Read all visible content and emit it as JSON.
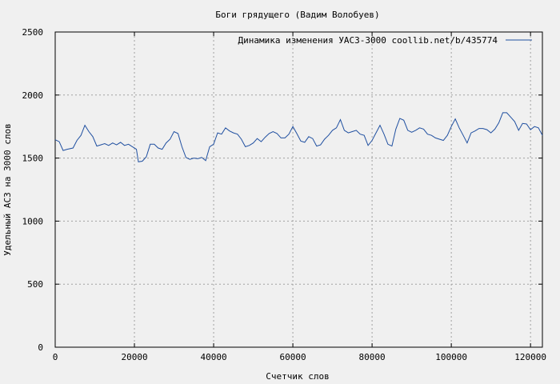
{
  "chart_data": {
    "type": "line",
    "title": "Боги грядущего (Вадим Волобуев)",
    "xlabel": "Счетчик слов",
    "ylabel": "Удельный АСЗ на 3000 слов",
    "xlim": [
      0,
      123000
    ],
    "ylim": [
      0,
      2500
    ],
    "x_ticks": [
      0,
      20000,
      40000,
      60000,
      80000,
      100000,
      120000
    ],
    "y_ticks": [
      0,
      500,
      1000,
      1500,
      2000,
      2500
    ],
    "grid": true,
    "legend_position": "top-right",
    "series": [
      {
        "name": "Динамика изменения УАСЗ-3000  coollib.net/b/435774",
        "color": "#1f4fa0",
        "points": [
          [
            0,
            1645
          ],
          [
            1000,
            1630
          ],
          [
            2000,
            1560
          ],
          [
            3000,
            1570
          ],
          [
            4500,
            1580
          ],
          [
            5500,
            1640
          ],
          [
            6500,
            1680
          ],
          [
            7500,
            1760
          ],
          [
            8500,
            1710
          ],
          [
            9500,
            1670
          ],
          [
            10500,
            1595
          ],
          [
            11500,
            1605
          ],
          [
            12500,
            1615
          ],
          [
            13500,
            1600
          ],
          [
            14500,
            1620
          ],
          [
            15500,
            1605
          ],
          [
            16500,
            1625
          ],
          [
            17500,
            1600
          ],
          [
            18500,
            1610
          ],
          [
            19500,
            1590
          ],
          [
            20500,
            1570
          ],
          [
            21000,
            1470
          ],
          [
            22000,
            1475
          ],
          [
            23000,
            1510
          ],
          [
            24000,
            1610
          ],
          [
            25000,
            1610
          ],
          [
            26000,
            1580
          ],
          [
            27000,
            1570
          ],
          [
            28000,
            1620
          ],
          [
            29000,
            1650
          ],
          [
            30000,
            1710
          ],
          [
            31000,
            1695
          ],
          [
            32000,
            1590
          ],
          [
            33000,
            1505
          ],
          [
            34000,
            1490
          ],
          [
            35000,
            1500
          ],
          [
            36000,
            1495
          ],
          [
            37000,
            1505
          ],
          [
            38000,
            1480
          ],
          [
            39000,
            1590
          ],
          [
            40000,
            1610
          ],
          [
            41000,
            1700
          ],
          [
            42000,
            1690
          ],
          [
            43000,
            1740
          ],
          [
            44000,
            1715
          ],
          [
            45000,
            1700
          ],
          [
            46000,
            1690
          ],
          [
            47000,
            1650
          ],
          [
            48000,
            1590
          ],
          [
            49000,
            1600
          ],
          [
            50000,
            1620
          ],
          [
            51000,
            1655
          ],
          [
            52000,
            1630
          ],
          [
            53000,
            1665
          ],
          [
            54000,
            1695
          ],
          [
            55000,
            1710
          ],
          [
            56000,
            1695
          ],
          [
            57000,
            1660
          ],
          [
            58000,
            1660
          ],
          [
            59000,
            1690
          ],
          [
            60000,
            1750
          ],
          [
            61000,
            1695
          ],
          [
            62000,
            1635
          ],
          [
            63000,
            1625
          ],
          [
            64000,
            1670
          ],
          [
            65000,
            1655
          ],
          [
            66000,
            1595
          ],
          [
            67000,
            1605
          ],
          [
            68000,
            1650
          ],
          [
            69000,
            1680
          ],
          [
            70000,
            1720
          ],
          [
            71000,
            1740
          ],
          [
            72000,
            1805
          ],
          [
            73000,
            1720
          ],
          [
            74000,
            1700
          ],
          [
            75000,
            1710
          ],
          [
            76000,
            1720
          ],
          [
            77000,
            1690
          ],
          [
            78000,
            1680
          ],
          [
            79000,
            1600
          ],
          [
            80000,
            1640
          ],
          [
            81000,
            1700
          ],
          [
            82000,
            1760
          ],
          [
            83000,
            1690
          ],
          [
            84000,
            1610
          ],
          [
            85000,
            1595
          ],
          [
            86000,
            1730
          ],
          [
            87000,
            1815
          ],
          [
            88000,
            1800
          ],
          [
            89000,
            1720
          ],
          [
            90000,
            1705
          ],
          [
            91000,
            1720
          ],
          [
            92000,
            1740
          ],
          [
            93000,
            1730
          ],
          [
            94000,
            1690
          ],
          [
            95000,
            1680
          ],
          [
            96000,
            1660
          ],
          [
            97000,
            1650
          ],
          [
            98000,
            1640
          ],
          [
            99000,
            1680
          ],
          [
            100000,
            1750
          ],
          [
            101000,
            1810
          ],
          [
            102000,
            1740
          ],
          [
            103000,
            1680
          ],
          [
            104000,
            1620
          ],
          [
            105000,
            1700
          ],
          [
            106000,
            1715
          ],
          [
            107000,
            1735
          ],
          [
            108000,
            1735
          ],
          [
            109000,
            1725
          ],
          [
            110000,
            1700
          ],
          [
            111000,
            1730
          ],
          [
            112000,
            1780
          ],
          [
            113000,
            1860
          ],
          [
            114000,
            1860
          ],
          [
            115000,
            1825
          ],
          [
            116000,
            1790
          ],
          [
            117000,
            1720
          ],
          [
            118000,
            1775
          ],
          [
            119000,
            1770
          ],
          [
            120000,
            1725
          ],
          [
            121000,
            1750
          ],
          [
            122000,
            1740
          ],
          [
            123000,
            1680
          ]
        ]
      }
    ]
  }
}
